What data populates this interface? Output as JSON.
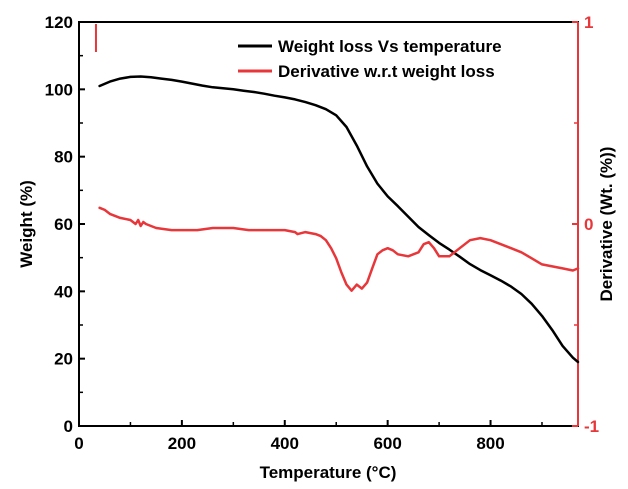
{
  "chart_data": {
    "type": "line",
    "xlabel": "Temperature (°C)",
    "ylabel_left": "Weight (%)",
    "ylabel_right": "Derivative (Wt. (%))",
    "xlim": [
      0,
      970
    ],
    "ylim_left": [
      0,
      120
    ],
    "ylim_right": [
      -1,
      1
    ],
    "x_ticks": [
      "0",
      "200",
      "400",
      "600",
      "800"
    ],
    "y_ticks_left": [
      "0",
      "20",
      "40",
      "60",
      "80",
      "100",
      "120"
    ],
    "y_ticks_right": [
      "-1",
      "0",
      "1"
    ],
    "legend_position": "top-right",
    "colors": {
      "weight": "#000000",
      "derivative": "#e8373a",
      "right_axis": "#e8373a",
      "left_axis": "#000000"
    },
    "series": [
      {
        "name": "Weight loss Vs temperature",
        "axis": "left",
        "color": "#000000",
        "x": [
          40,
          60,
          80,
          100,
          120,
          140,
          160,
          180,
          200,
          220,
          240,
          260,
          280,
          300,
          320,
          340,
          360,
          380,
          400,
          420,
          440,
          460,
          480,
          500,
          520,
          540,
          560,
          580,
          600,
          620,
          640,
          660,
          680,
          700,
          720,
          740,
          760,
          780,
          800,
          820,
          840,
          860,
          880,
          900,
          920,
          940,
          960,
          970
        ],
        "y": [
          101.0,
          102.3,
          103.2,
          103.7,
          103.8,
          103.6,
          103.2,
          102.8,
          102.3,
          101.7,
          101.1,
          100.6,
          100.3,
          100.0,
          99.6,
          99.2,
          98.7,
          98.1,
          97.6,
          97.0,
          96.2,
          95.3,
          94.1,
          92.3,
          88.8,
          83.3,
          77.1,
          72.0,
          68.2,
          65.3,
          62.2,
          59.1,
          56.7,
          54.4,
          52.4,
          50.3,
          48.1,
          46.3,
          44.8,
          43.2,
          41.4,
          39.2,
          36.3,
          32.7,
          28.5,
          23.8,
          20.3,
          19.0
        ]
      },
      {
        "name": "Derivative w.r.t weight loss",
        "axis": "right",
        "color": "#e8373a",
        "x": [
          40,
          50,
          60,
          80,
          100,
          110,
          115,
          120,
          125,
          130,
          150,
          180,
          200,
          230,
          260,
          280,
          300,
          330,
          360,
          400,
          420,
          425,
          440,
          460,
          470,
          480,
          490,
          500,
          510,
          520,
          530,
          540,
          550,
          560,
          570,
          580,
          590,
          600,
          610,
          620,
          640,
          660,
          670,
          680,
          690,
          700,
          720,
          740,
          760,
          780,
          800,
          820,
          840,
          860,
          880,
          900,
          920,
          940,
          960,
          970
        ],
        "y": [
          0.08,
          0.07,
          0.05,
          0.03,
          0.02,
          0.0,
          0.02,
          -0.01,
          0.01,
          0.0,
          -0.02,
          -0.03,
          -0.03,
          -0.03,
          -0.02,
          -0.02,
          -0.02,
          -0.03,
          -0.03,
          -0.03,
          -0.04,
          -0.05,
          -0.04,
          -0.05,
          -0.06,
          -0.08,
          -0.12,
          -0.17,
          -0.24,
          -0.3,
          -0.33,
          -0.3,
          -0.32,
          -0.29,
          -0.22,
          -0.15,
          -0.13,
          -0.12,
          -0.13,
          -0.15,
          -0.16,
          -0.14,
          -0.1,
          -0.09,
          -0.12,
          -0.16,
          -0.16,
          -0.12,
          -0.08,
          -0.07,
          -0.08,
          -0.1,
          -0.12,
          -0.14,
          -0.17,
          -0.2,
          -0.21,
          -0.22,
          -0.23,
          -0.22
        ]
      }
    ]
  }
}
